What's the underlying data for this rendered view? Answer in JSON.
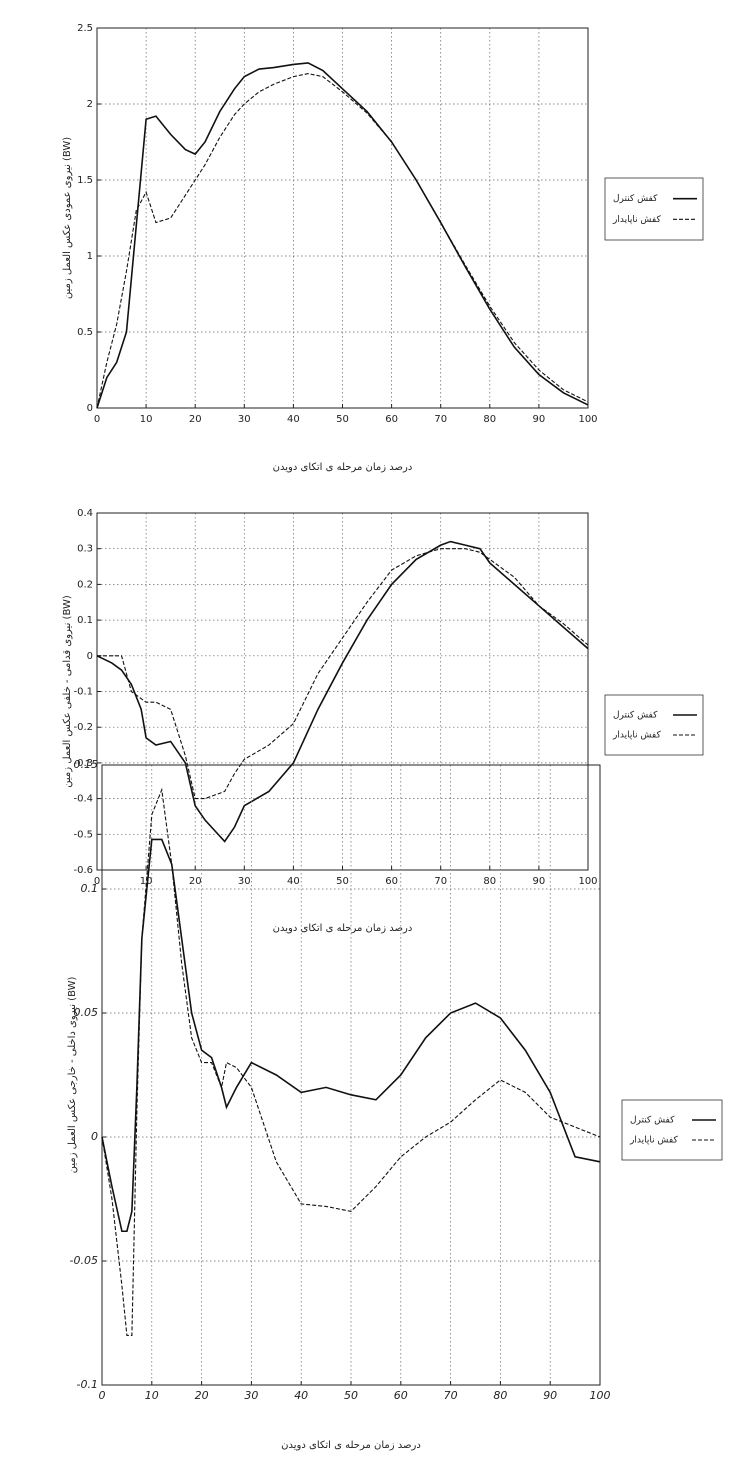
{
  "chart_data": [
    {
      "type": "line",
      "y_label": "نیروی عمودی عکس العمل زمین (BW)",
      "x_label": "درصد زمان مرحله ی اتکای دویدن",
      "xlim": [
        0,
        100
      ],
      "xticks": [
        0,
        10,
        20,
        30,
        40,
        50,
        60,
        70,
        80,
        90,
        100
      ],
      "ylim": [
        0,
        2.5
      ],
      "yticks": [
        0,
        0.5,
        1,
        1.5,
        2,
        2.5
      ],
      "grid": true,
      "legend": "right",
      "x": [
        0,
        2,
        4,
        6,
        8,
        10,
        12,
        15,
        18,
        20,
        22,
        25,
        28,
        30,
        33,
        36,
        40,
        43,
        46,
        50,
        55,
        60,
        65,
        70,
        75,
        80,
        85,
        90,
        95,
        100
      ],
      "series": [
        {
          "name": "کفش کنترل",
          "color": "#111111",
          "dash": false,
          "values": [
            0,
            0.2,
            0.3,
            0.5,
            1.2,
            1.9,
            1.92,
            1.8,
            1.7,
            1.67,
            1.75,
            1.95,
            2.1,
            2.18,
            2.23,
            2.24,
            2.26,
            2.27,
            2.22,
            2.1,
            1.95,
            1.75,
            1.5,
            1.22,
            0.93,
            0.65,
            0.4,
            0.22,
            0.1,
            0.02
          ]
        },
        {
          "name": "کفش ناپایدار",
          "color": "#111111",
          "dash": true,
          "values": [
            0,
            0.3,
            0.55,
            0.9,
            1.3,
            1.42,
            1.22,
            1.25,
            1.4,
            1.5,
            1.6,
            1.78,
            1.93,
            2.0,
            2.08,
            2.13,
            2.18,
            2.2,
            2.18,
            2.08,
            1.94,
            1.75,
            1.5,
            1.22,
            0.94,
            0.67,
            0.43,
            0.25,
            0.12,
            0.04
          ]
        }
      ]
    },
    {
      "type": "line",
      "y_label": "نیروی قدامی - خلفی عکس العمل زمین (BW)",
      "x_label": "درصد زمان مرحله ی اتکای دویدن",
      "xlim": [
        0,
        100
      ],
      "xticks": [
        0,
        10,
        20,
        30,
        40,
        50,
        60,
        70,
        80,
        90,
        100
      ],
      "ylim": [
        -0.6,
        0.4
      ],
      "yticks": [
        -0.6,
        -0.5,
        -0.4,
        -0.3,
        -0.2,
        -0.1,
        0,
        0.1,
        0.2,
        0.3,
        0.4
      ],
      "grid": true,
      "legend": "right",
      "x": [
        0,
        3,
        5,
        7,
        9,
        10,
        12,
        15,
        18,
        20,
        22,
        24,
        26,
        28,
        30,
        35,
        40,
        45,
        50,
        55,
        60,
        65,
        70,
        72,
        75,
        78,
        80,
        85,
        90,
        95,
        100
      ],
      "series": [
        {
          "name": "کفش کنترل",
          "color": "#111111",
          "dash": false,
          "values": [
            0,
            -0.02,
            -0.04,
            -0.08,
            -0.15,
            -0.23,
            -0.25,
            -0.24,
            -0.3,
            -0.42,
            -0.46,
            -0.49,
            -0.52,
            -0.48,
            -0.42,
            -0.38,
            -0.3,
            -0.15,
            -0.02,
            0.1,
            0.2,
            0.27,
            0.31,
            0.32,
            0.31,
            0.3,
            0.26,
            0.2,
            0.14,
            0.08,
            0.02
          ]
        },
        {
          "name": "کفش ناپایدار",
          "color": "#111111",
          "dash": true,
          "values": [
            0,
            0,
            0,
            -0.1,
            -0.12,
            -0.13,
            -0.13,
            -0.15,
            -0.28,
            -0.4,
            -0.4,
            -0.39,
            -0.38,
            -0.33,
            -0.29,
            -0.25,
            -0.19,
            -0.05,
            0.05,
            0.15,
            0.24,
            0.28,
            0.3,
            0.3,
            0.3,
            0.29,
            0.27,
            0.22,
            0.14,
            0.09,
            0.03
          ]
        }
      ]
    },
    {
      "type": "line",
      "y_label": "نیروی داخلی - خارجی عکس العمل زمین (BW)",
      "x_label": "درصد زمان مرحله ی اتکای دویدن",
      "xlim": [
        0,
        100
      ],
      "xticks": [
        0,
        10,
        20,
        30,
        40,
        50,
        60,
        70,
        80,
        90,
        100
      ],
      "ylim": [
        -0.1,
        0.15
      ],
      "yticks": [
        -0.1,
        -0.05,
        0,
        0.05,
        0.1,
        0.15
      ],
      "grid": true,
      "legend": "right",
      "x": [
        0,
        2,
        4,
        5,
        6,
        7,
        8,
        10,
        12,
        14,
        16,
        18,
        20,
        22,
        24,
        25,
        27,
        30,
        35,
        40,
        45,
        50,
        55,
        60,
        65,
        70,
        75,
        80,
        85,
        90,
        95,
        100
      ],
      "series": [
        {
          "name": "کفش کنترل",
          "color": "#111111",
          "dash": false,
          "values": [
            0,
            -0.02,
            -0.038,
            -0.038,
            -0.03,
            0.02,
            0.08,
            0.12,
            0.12,
            0.11,
            0.08,
            0.05,
            0.035,
            0.032,
            0.02,
            0.012,
            0.02,
            0.03,
            0.025,
            0.018,
            0.02,
            0.017,
            0.015,
            0.025,
            0.04,
            0.05,
            0.054,
            0.048,
            0.035,
            0.018,
            -0.008,
            -0.01
          ]
        },
        {
          "name": "کفش ناپایدار",
          "color": "#111111",
          "dash": true,
          "values": [
            0,
            -0.025,
            -0.06,
            -0.08,
            -0.08,
            0.01,
            0.08,
            0.13,
            0.14,
            0.11,
            0.07,
            0.04,
            0.03,
            0.03,
            0.02,
            0.03,
            0.028,
            0.02,
            -0.01,
            -0.027,
            -0.028,
            -0.03,
            -0.02,
            -0.008,
            0,
            0.006,
            0.015,
            0.023,
            0.018,
            0.008,
            0.004,
            0
          ]
        }
      ]
    }
  ]
}
